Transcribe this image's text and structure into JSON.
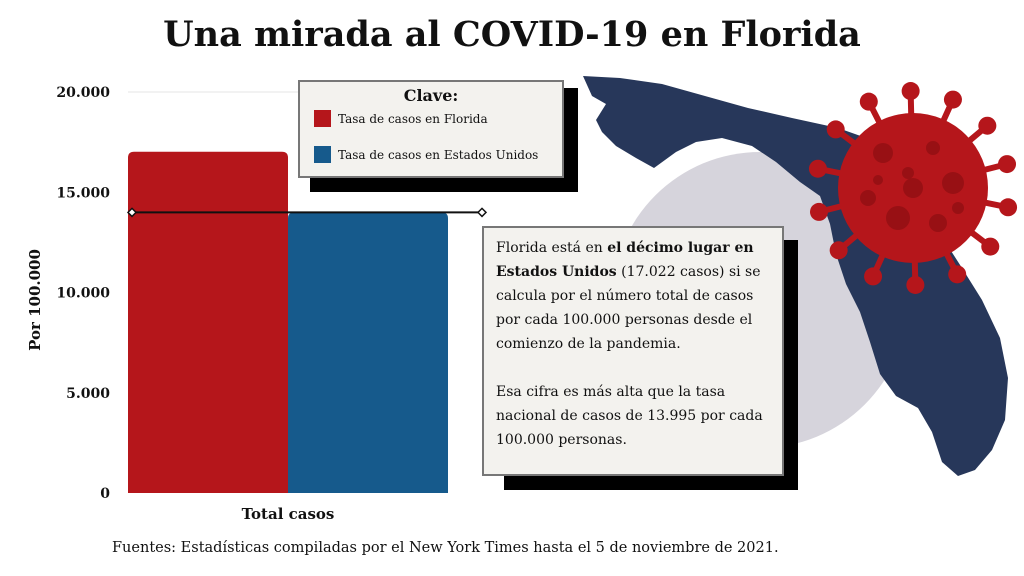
{
  "title": "Una mirada al COVID-19 en Florida",
  "source": "Fuentes: Estadísticas compiladas por el New York Times hasta el 5 de noviembre de 2021.",
  "legend": {
    "title": "Clave:",
    "items": [
      {
        "label": "Tasa de casos en Florida",
        "color": "#b5161b"
      },
      {
        "label": "Tasa de casos en Estados Unidos",
        "color": "#165a8c"
      }
    ]
  },
  "note": {
    "p1_pre": "Florida está en ",
    "p1_bold": "el décimo lugar en Estados Unidos",
    "p1_post": " (17.022 casos) si se calcula por el número total de casos por cada 100.000 personas desde el comienzo de la pandemia.",
    "p2": "Esa cifra es más alta que la tasa nacional de casos de 13.995 por cada 100.000 personas."
  },
  "colors": {
    "map": "#27375a",
    "circle": "#d6d4dc",
    "virus": "#b5161b",
    "line": "#111111"
  },
  "chart_data": {
    "type": "bar",
    "categories": [
      "Total casos"
    ],
    "series": [
      {
        "name": "Tasa de casos en Florida",
        "values": [
          17022
        ],
        "color": "#b5161b"
      },
      {
        "name": "Tasa de casos en Estados Unidos",
        "values": [
          13995
        ],
        "color": "#165a8c"
      }
    ],
    "reference_line": 13995,
    "ylabel": "Por 100.000",
    "xlabel": "",
    "ylim": [
      0,
      20000
    ],
    "yticks": [
      0,
      5000,
      10000,
      15000,
      20000
    ],
    "ytick_labels": [
      "0",
      "5.000",
      "10.000",
      "15.000",
      "20.000"
    ],
    "grid": false
  }
}
